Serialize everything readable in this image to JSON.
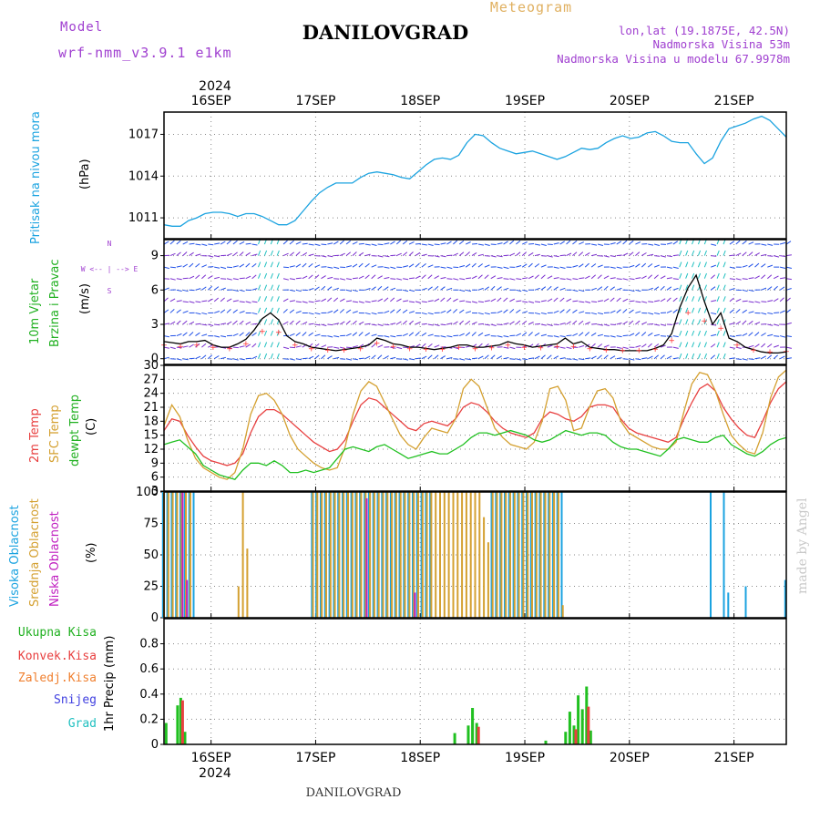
{
  "header": {
    "model_label": "Model",
    "model_name": "wrf-nmm_v3.9.1 e1km",
    "location": "DANILOVGRAD",
    "product": "Meteogram",
    "lonlat": "lon,lat (19.1875E, 42.5N)",
    "elevation": "Nadmorska Visina 53m",
    "model_elevation": "Nadmorska Visina u modelu 67.9978m",
    "credit": "made by Angel",
    "footer": "DANILOVGRAD"
  },
  "colors": {
    "pressure": "#1ba3e0",
    "wind_calm": "#7b2fd0",
    "wind_mid": "#2050e8",
    "wind_strong": "#20c0c0",
    "wind_gust": "#ff3030",
    "t2m": "#e84040",
    "tsfc": "#d4a030",
    "dewpt": "#20c020",
    "cloud_high": "#1ba3e0",
    "cloud_mid": "#d4a030",
    "cloud_low": "#c020c0",
    "precip_total": "#20c020",
    "precip_conv": "#e84040",
    "precip_ice": "#f08030",
    "precip_snow": "#4040e0",
    "precip_grad": "#20c0c0"
  },
  "time_axis": {
    "year": "2024",
    "days": [
      "16SEP",
      "17SEP",
      "18SEP",
      "19SEP",
      "20SEP",
      "21SEP"
    ]
  },
  "chart_data": [
    {
      "type": "line",
      "id": "pressure",
      "ylabel": "Pritisak na nivou mora",
      "unit": "(hPa)",
      "ylim": [
        1009.5,
        1018.6
      ],
      "yticks": [
        "1011",
        "1014",
        "1017"
      ],
      "ytick_values": [
        1011,
        1014,
        1017
      ],
      "x_start_day": 15.55,
      "x_end_day": 21.5,
      "series": [
        {
          "values": [
            1010.5,
            1010.4,
            1010.4,
            1010.8,
            1011.0,
            1011.3,
            1011.4,
            1011.4,
            1011.3,
            1011.1,
            1011.3,
            1011.3,
            1011.1,
            1010.8,
            1010.5,
            1010.5,
            1010.8,
            1011.5,
            1012.2,
            1012.8,
            1013.2,
            1013.5,
            1013.5,
            1013.5,
            1013.9,
            1014.2,
            1014.3,
            1014.2,
            1014.1,
            1013.9,
            1013.8,
            1014.3,
            1014.8,
            1015.2,
            1015.3,
            1015.2,
            1015.5,
            1016.4,
            1017.0,
            1016.9,
            1016.4,
            1016.0,
            1015.8,
            1015.6,
            1015.7,
            1015.8,
            1015.6,
            1015.4,
            1015.2,
            1015.4,
            1015.7,
            1016.0,
            1015.9,
            1016.0,
            1016.4,
            1016.7,
            1016.9,
            1016.7,
            1016.8,
            1017.1,
            1017.2,
            1016.9,
            1016.5,
            1016.4,
            1016.4,
            1015.6,
            1014.9,
            1015.3,
            1016.5,
            1017.4,
            1017.6,
            1017.8,
            1018.1,
            1018.3,
            1018.0,
            1017.4,
            1016.8
          ]
        }
      ]
    },
    {
      "type": "line",
      "id": "wind",
      "ylabel": "10m Vjetar",
      "ylabel2": "Brzina i Pravac",
      "unit": "(m/s)",
      "compass": "W  <-- | -->  E",
      "compass_ns": "N",
      "compass_s": "S",
      "ylim": [
        -0.5,
        10.4
      ],
      "yticks": [
        "0",
        "3",
        "6",
        "9"
      ],
      "ytick_values": [
        0,
        3,
        6,
        9
      ],
      "x_start_day": 15.55,
      "x_end_day": 21.5,
      "series": [
        {
          "values": [
            1.5,
            1.4,
            1.3,
            1.5,
            1.5,
            1.6,
            1.2,
            1.0,
            1.0,
            1.3,
            1.7,
            2.5,
            3.5,
            4.0,
            3.4,
            2.0,
            1.5,
            1.3,
            1.0,
            0.9,
            0.8,
            0.7,
            0.8,
            0.9,
            1.0,
            1.2,
            1.8,
            1.6,
            1.3,
            1.2,
            1.0,
            1.0,
            0.9,
            0.8,
            0.9,
            1.0,
            1.2,
            1.2,
            1.0,
            1.0,
            1.1,
            1.2,
            1.5,
            1.3,
            1.2,
            1.0,
            1.1,
            1.2,
            1.3,
            1.8,
            1.3,
            1.5,
            1.0,
            0.9,
            0.8,
            0.8,
            0.7,
            0.7,
            0.7,
            0.7,
            0.9,
            1.2,
            2.2,
            4.5,
            6.2,
            7.3,
            5.0,
            3.0,
            4.0,
            1.8,
            1.5,
            1.0,
            0.8,
            0.6,
            0.5,
            0.5,
            0.6
          ]
        }
      ]
    },
    {
      "type": "line",
      "id": "temperature",
      "ylabel": "2m Temp",
      "ylabel2": "SFC Temp",
      "ylabel3": "dewpt Temp",
      "unit": "(C)",
      "ylim": [
        3,
        30
      ],
      "yticks": [
        "3",
        "6",
        "9",
        "12",
        "15",
        "18",
        "21",
        "24",
        "27",
        "30"
      ],
      "ytick_values": [
        3,
        6,
        9,
        12,
        15,
        18,
        21,
        24,
        27,
        30
      ],
      "x_start_day": 15.55,
      "x_end_day": 21.5,
      "series": [
        {
          "name": "2m Temp",
          "values": [
            16.0,
            18.5,
            18.0,
            15.0,
            12.5,
            10.5,
            9.5,
            9.0,
            8.5,
            9.0,
            11.0,
            15.5,
            19.0,
            20.5,
            20.5,
            19.5,
            18.0,
            16.5,
            15.0,
            13.5,
            12.5,
            11.5,
            12.0,
            14.0,
            18.0,
            21.5,
            23.0,
            22.5,
            21.0,
            19.5,
            18.0,
            16.5,
            16.0,
            17.5,
            18.0,
            17.5,
            17.0,
            18.5,
            21.0,
            22.0,
            21.5,
            20.0,
            18.0,
            16.5,
            15.5,
            15.0,
            14.5,
            15.5,
            18.5,
            20.0,
            19.5,
            18.5,
            18.0,
            19.0,
            21.0,
            21.5,
            21.5,
            21.0,
            18.5,
            16.5,
            15.5,
            15.0,
            14.5,
            14.0,
            13.5,
            14.5,
            18.5,
            22.0,
            25.0,
            26.0,
            24.5,
            21.0,
            18.5,
            16.5,
            15.0,
            14.5,
            18.0,
            22.0,
            25.0,
            26.5
          ]
        },
        {
          "name": "SFC Temp",
          "values": [
            17.0,
            21.5,
            19.0,
            14.0,
            10.0,
            8.0,
            7.0,
            6.0,
            5.5,
            7.0,
            12.0,
            19.5,
            23.5,
            24.0,
            22.5,
            19.5,
            15.0,
            12.0,
            10.5,
            9.0,
            8.0,
            7.5,
            8.0,
            12.5,
            19.5,
            24.5,
            26.5,
            25.5,
            22.0,
            18.5,
            15.0,
            13.0,
            12.0,
            14.5,
            16.5,
            16.0,
            15.5,
            18.5,
            25.0,
            27.0,
            25.5,
            21.0,
            16.5,
            14.5,
            13.0,
            12.5,
            12.0,
            13.5,
            18.0,
            25.0,
            25.5,
            22.5,
            16.0,
            16.5,
            21.0,
            24.5,
            25.0,
            23.0,
            18.0,
            15.5,
            14.5,
            13.5,
            12.5,
            12.0,
            12.0,
            13.5,
            20.0,
            26.0,
            28.5,
            28.0,
            24.5,
            19.5,
            15.0,
            13.0,
            11.5,
            11.0,
            15.5,
            23.0,
            27.5,
            29.0
          ]
        },
        {
          "name": "dewpt Temp",
          "values": [
            13.0,
            13.5,
            14.0,
            12.5,
            11.0,
            8.5,
            7.5,
            6.5,
            6.0,
            5.5,
            7.5,
            9.0,
            9.0,
            8.5,
            9.5,
            8.5,
            7.0,
            7.0,
            7.5,
            7.0,
            7.5,
            8.0,
            10.0,
            12.0,
            12.5,
            12.0,
            11.5,
            12.5,
            13.0,
            12.0,
            11.0,
            10.0,
            10.5,
            11.0,
            11.5,
            11.0,
            11.0,
            12.0,
            13.0,
            14.5,
            15.5,
            15.5,
            15.0,
            15.5,
            16.0,
            15.5,
            15.0,
            14.0,
            13.5,
            14.0,
            15.0,
            16.0,
            15.5,
            15.0,
            15.5,
            15.5,
            15.0,
            13.5,
            12.5,
            12.0,
            12.0,
            11.5,
            11.0,
            10.5,
            12.0,
            14.0,
            14.5,
            14.0,
            13.5,
            13.5,
            14.5,
            15.0,
            13.0,
            12.0,
            11.0,
            10.5,
            11.5,
            13.0,
            14.0,
            14.5
          ]
        }
      ]
    },
    {
      "type": "bar",
      "id": "clouds",
      "ylabel": "Visoka Oblacnost",
      "ylabel2": "Srednja Oblacnost",
      "ylabel3": "Niska Oblacnost",
      "unit": "(%)",
      "ylim": [
        0,
        100
      ],
      "yticks": [
        "0",
        "25",
        "50",
        "75",
        "100"
      ],
      "ytick_values": [
        0,
        25,
        50,
        75,
        100
      ],
      "x_start_day": 15.55,
      "x_end_day": 21.5,
      "series": [
        {
          "name": "Visoka Oblacnost",
          "values": [
            100,
            100,
            100,
            100,
            100,
            100,
            100,
            100,
            0,
            0,
            0,
            0,
            0,
            0,
            0,
            0,
            0,
            0,
            0,
            0,
            0,
            0,
            0,
            0,
            0,
            0,
            0,
            0,
            0,
            0,
            0,
            0,
            0,
            0,
            100,
            100,
            100,
            100,
            100,
            100,
            100,
            100,
            100,
            100,
            100,
            100,
            100,
            100,
            100,
            100,
            100,
            100,
            100,
            100,
            100,
            100,
            100,
            100,
            100,
            100,
            100,
            100,
            0,
            0,
            0,
            0,
            0,
            0,
            0,
            0,
            0,
            0,
            0,
            0,
            0,
            100,
            100,
            100,
            100,
            100,
            100,
            100,
            100,
            100,
            100,
            100,
            100,
            100,
            100,
            100,
            100,
            100,
            0,
            0,
            0,
            0,
            0,
            0,
            0,
            0,
            0,
            0,
            0,
            0,
            0,
            0,
            0,
            0,
            0,
            0,
            0,
            0,
            0,
            0,
            0,
            0,
            0,
            0,
            0,
            0,
            0,
            0,
            0,
            0,
            0,
            100,
            0,
            0,
            100,
            20,
            0,
            0,
            0,
            25,
            0,
            0,
            0,
            0,
            0,
            0,
            0,
            0,
            30
          ]
        },
        {
          "name": "Srednja Oblacnost",
          "values": [
            100,
            100,
            100,
            100,
            100,
            100,
            100,
            0,
            0,
            0,
            0,
            0,
            0,
            0,
            0,
            0,
            0,
            25,
            100,
            55,
            0,
            0,
            0,
            0,
            0,
            0,
            0,
            0,
            0,
            0,
            0,
            0,
            0,
            0,
            100,
            100,
            100,
            100,
            100,
            100,
            100,
            100,
            100,
            100,
            100,
            100,
            100,
            100,
            100,
            100,
            100,
            100,
            100,
            100,
            100,
            100,
            100,
            100,
            100,
            100,
            100,
            100,
            100,
            100,
            100,
            100,
            100,
            100,
            100,
            100,
            100,
            100,
            100,
            80,
            60,
            100,
            100,
            100,
            100,
            100,
            100,
            100,
            100,
            100,
            100,
            100,
            100,
            100,
            100,
            100,
            100,
            10,
            0,
            0,
            0,
            0,
            0,
            0,
            0,
            0,
            0,
            0,
            0,
            0,
            0,
            0,
            0,
            0,
            0,
            0,
            0,
            0,
            0,
            0,
            0,
            0,
            0,
            0,
            0,
            0,
            0,
            0,
            0,
            0,
            0,
            0,
            0,
            0,
            0,
            0,
            0,
            0,
            0,
            0,
            0,
            0,
            0,
            0,
            0,
            0,
            0,
            0,
            0
          ]
        },
        {
          "name": "Niska Oblacnost",
          "values": [
            0,
            0,
            0,
            0,
            100,
            30,
            0,
            0,
            0,
            0,
            0,
            0,
            0,
            0,
            0,
            0,
            0,
            0,
            0,
            0,
            0,
            0,
            0,
            0,
            0,
            0,
            0,
            0,
            0,
            0,
            0,
            0,
            0,
            0,
            0,
            0,
            0,
            0,
            0,
            0,
            0,
            0,
            0,
            0,
            0,
            0,
            95,
            0,
            0,
            0,
            0,
            0,
            0,
            0,
            0,
            0,
            0,
            20,
            0,
            0,
            0,
            0,
            0,
            0,
            0,
            0,
            0,
            0,
            0,
            0,
            0,
            0,
            0,
            0,
            0,
            0,
            0,
            0,
            0,
            0,
            0,
            0,
            0,
            0,
            0,
            0,
            0,
            0,
            0,
            0,
            0,
            0,
            0,
            0,
            0,
            0,
            0,
            0,
            0,
            0,
            0,
            0,
            0,
            0,
            0,
            0,
            0,
            0,
            0,
            0,
            0,
            0,
            0,
            0,
            0,
            0,
            0,
            0,
            0,
            0,
            0,
            0,
            0,
            0,
            0,
            0,
            0,
            0,
            0,
            0,
            0,
            0,
            0,
            0,
            0,
            0,
            0,
            0,
            0,
            0,
            0,
            0,
            0
          ]
        }
      ]
    },
    {
      "type": "bar",
      "id": "precip",
      "ylabel": "1hr Precip",
      "unit": "(mm)",
      "ylim": [
        0,
        1.0
      ],
      "yticks": [
        "0",
        "0.2",
        "0.4",
        "0.6",
        "0.8"
      ],
      "ytick_values": [
        0,
        0.2,
        0.4,
        0.6,
        0.8
      ],
      "legend": [
        "Ukupna Kisa",
        "Konvek.Kisa",
        "Zaledj.Kisa",
        "Snijeg",
        "Grad"
      ],
      "x_start_day": 15.55,
      "x_end_day": 21.5,
      "series": [
        {
          "name": "Ukupna Kisa",
          "bars": [
            [
              15.57,
              0.17
            ],
            [
              15.68,
              0.31
            ],
            [
              15.71,
              0.37
            ],
            [
              15.75,
              0.1
            ],
            [
              16.0,
              0
            ],
            [
              18.33,
              0.09
            ],
            [
              18.46,
              0.15
            ],
            [
              18.5,
              0.29
            ],
            [
              18.54,
              0.17
            ],
            [
              19.2,
              0.03
            ],
            [
              19.39,
              0.1
            ],
            [
              19.43,
              0.26
            ],
            [
              19.47,
              0.15
            ],
            [
              19.51,
              0.39
            ],
            [
              19.55,
              0.28
            ],
            [
              19.59,
              0.46
            ],
            [
              19.63,
              0.11
            ]
          ]
        },
        {
          "name": "Konvek.Kisa",
          "bars": [
            [
              15.71,
              0.35
            ],
            [
              18.54,
              0.14
            ],
            [
              19.47,
              0.12
            ],
            [
              19.59,
              0.3
            ]
          ]
        }
      ]
    }
  ]
}
